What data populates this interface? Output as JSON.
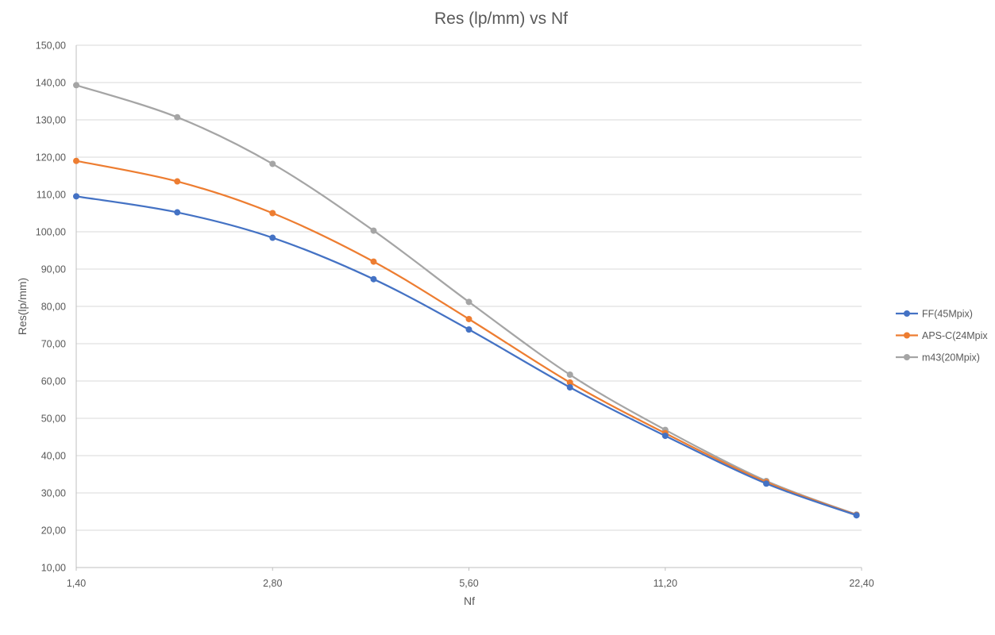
{
  "chart_data": {
    "type": "line",
    "title": "Res (lp/mm) vs Nf",
    "xlabel": "Nf",
    "ylabel": "Res(lp/mm)",
    "x_scale": "log2",
    "xlim": [
      1.4,
      22.4
    ],
    "ylim": [
      10,
      150
    ],
    "x_ticks": [
      1.4,
      2.8,
      5.6,
      11.2,
      22.4
    ],
    "x_tick_labels": [
      "1,40",
      "2,80",
      "5,60",
      "11,20",
      "22,40"
    ],
    "y_ticks": [
      10,
      20,
      30,
      40,
      50,
      60,
      70,
      80,
      90,
      100,
      110,
      120,
      130,
      140,
      150
    ],
    "y_tick_labels": [
      "10,00",
      "20,00",
      "30,00",
      "40,00",
      "50,00",
      "60,00",
      "70,00",
      "80,00",
      "90,00",
      "100,00",
      "110,00",
      "120,00",
      "130,00",
      "140,00",
      "150,00"
    ],
    "grid": "horizontal",
    "legend_position": "right",
    "x": [
      1.4,
      2.0,
      2.8,
      4.0,
      5.6,
      8.0,
      11.2,
      16.0,
      22.0
    ],
    "series": [
      {
        "name": "FF(45Mpix)",
        "color": "#4472c4",
        "values": [
          109.5,
          105.2,
          98.4,
          87.3,
          73.8,
          58.3,
          45.3,
          32.5,
          24.0
        ]
      },
      {
        "name": "APS-C(24Mpix",
        "color": "#ed7d31",
        "values": [
          119.0,
          113.5,
          105.0,
          92.0,
          76.6,
          59.6,
          46.0,
          32.9,
          24.1
        ]
      },
      {
        "name": "m43(20Mpix)",
        "color": "#a5a5a5",
        "values": [
          139.3,
          130.7,
          118.2,
          100.3,
          81.2,
          61.7,
          46.9,
          33.2,
          24.2
        ]
      }
    ]
  }
}
